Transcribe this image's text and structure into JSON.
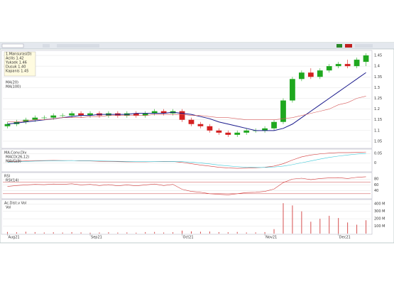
{
  "chart_data": [
    {
      "type": "candlestick",
      "title": "1.Mansuras(D)",
      "annotations": [
        "Acilis 1.42",
        "Yuksek 1.46",
        "Dusuk 1.40",
        "Kapanis 1.45"
      ],
      "open": [
        1.12,
        1.13,
        1.14,
        1.15,
        1.16,
        1.16,
        1.17,
        1.17,
        1.18,
        1.17,
        1.18,
        1.17,
        1.18,
        1.17,
        1.18,
        1.17,
        1.18,
        1.19,
        1.18,
        1.19,
        1.15,
        1.13,
        1.12,
        1.1,
        1.09,
        1.08,
        1.09,
        1.1,
        1.1,
        1.11,
        1.14,
        1.24,
        1.34,
        1.37,
        1.35,
        1.38,
        1.4,
        1.41,
        1.4,
        1.42
      ],
      "high": [
        1.14,
        1.15,
        1.16,
        1.17,
        1.17,
        1.18,
        1.18,
        1.19,
        1.19,
        1.19,
        1.19,
        1.19,
        1.19,
        1.19,
        1.19,
        1.19,
        1.2,
        1.2,
        1.2,
        1.2,
        1.16,
        1.14,
        1.13,
        1.11,
        1.1,
        1.1,
        1.11,
        1.11,
        1.12,
        1.15,
        1.25,
        1.35,
        1.38,
        1.39,
        1.39,
        1.41,
        1.42,
        1.43,
        1.44,
        1.46
      ],
      "low": [
        1.11,
        1.12,
        1.13,
        1.14,
        1.15,
        1.15,
        1.16,
        1.16,
        1.16,
        1.16,
        1.16,
        1.16,
        1.16,
        1.16,
        1.16,
        1.16,
        1.17,
        1.17,
        1.17,
        1.14,
        1.12,
        1.11,
        1.09,
        1.08,
        1.07,
        1.07,
        1.08,
        1.09,
        1.09,
        1.1,
        1.13,
        1.23,
        1.33,
        1.34,
        1.34,
        1.37,
        1.39,
        1.39,
        1.39,
        1.4
      ],
      "close": [
        1.13,
        1.14,
        1.15,
        1.16,
        1.16,
        1.17,
        1.17,
        1.18,
        1.17,
        1.18,
        1.17,
        1.18,
        1.17,
        1.18,
        1.17,
        1.18,
        1.19,
        1.18,
        1.19,
        1.15,
        1.13,
        1.12,
        1.1,
        1.09,
        1.08,
        1.09,
        1.1,
        1.1,
        1.11,
        1.14,
        1.24,
        1.34,
        1.37,
        1.35,
        1.38,
        1.4,
        1.41,
        1.4,
        1.43,
        1.45
      ],
      "up_color": "#1fa81f",
      "down_color": "#d42020",
      "series": [
        {
          "name": "MA(20)",
          "color": "#1a1a8c",
          "values": [
            1.13,
            1.135,
            1.14,
            1.145,
            1.15,
            1.155,
            1.16,
            1.165,
            1.17,
            1.17,
            1.175,
            1.175,
            1.175,
            1.175,
            1.18,
            1.18,
            1.18,
            1.18,
            1.185,
            1.18,
            1.175,
            1.165,
            1.155,
            1.14,
            1.13,
            1.12,
            1.11,
            1.1,
            1.1,
            1.1,
            1.11,
            1.13,
            1.16,
            1.19,
            1.22,
            1.25,
            1.28,
            1.31,
            1.34,
            1.37
          ]
        },
        {
          "name": "MA(100)",
          "color": "#d65a5a",
          "values": [
            1.14,
            1.14,
            1.145,
            1.15,
            1.15,
            1.155,
            1.16,
            1.16,
            1.16,
            1.165,
            1.165,
            1.17,
            1.17,
            1.17,
            1.17,
            1.17,
            1.175,
            1.175,
            1.175,
            1.175,
            1.17,
            1.17,
            1.165,
            1.16,
            1.16,
            1.155,
            1.15,
            1.15,
            1.15,
            1.15,
            1.155,
            1.16,
            1.17,
            1.18,
            1.19,
            1.2,
            1.22,
            1.23,
            1.25,
            1.26
          ]
        }
      ],
      "ylim": [
        1.02,
        1.47
      ],
      "yticks": [
        1.05,
        1.1,
        1.15,
        1.2,
        1.25,
        1.3,
        1.35,
        1.4,
        1.45
      ]
    },
    {
      "type": "line",
      "title": "MA.Conv.Div",
      "series": [
        {
          "name": "MACD(26,12)",
          "color": "#d23a3a",
          "values": [
            0.005,
            0.008,
            0.01,
            0.012,
            0.012,
            0.013,
            0.012,
            0.012,
            0.01,
            0.01,
            0.008,
            0.007,
            0.006,
            0.005,
            0.005,
            0.005,
            0.006,
            0.007,
            0.007,
            0.002,
            -0.005,
            -0.012,
            -0.018,
            -0.024,
            -0.028,
            -0.03,
            -0.029,
            -0.027,
            -0.024,
            -0.018,
            -0.005,
            0.015,
            0.032,
            0.042,
            0.048,
            0.052,
            0.055,
            0.055,
            0.056,
            0.058
          ]
        },
        {
          "name": "MAVG(9)",
          "color": "#3cc8d8",
          "values": [
            0.003,
            0.005,
            0.007,
            0.009,
            0.01,
            0.011,
            0.011,
            0.012,
            0.011,
            0.011,
            0.01,
            0.009,
            0.008,
            0.007,
            0.006,
            0.006,
            0.006,
            0.006,
            0.007,
            0.006,
            0.003,
            -0.001,
            -0.006,
            -0.012,
            -0.017,
            -0.021,
            -0.024,
            -0.025,
            -0.025,
            -0.023,
            -0.018,
            -0.01,
            0.0,
            0.01,
            0.02,
            0.029,
            0.036,
            0.042,
            0.047,
            0.05
          ]
        }
      ],
      "ylim": [
        -0.045,
        0.07
      ],
      "yticks": [
        0,
        0.05
      ]
    },
    {
      "type": "line",
      "title": "RSI",
      "series": [
        {
          "name": "RSI(14)",
          "color": "#d23a3a",
          "values": [
            55,
            58,
            60,
            62,
            61,
            63,
            62,
            64,
            60,
            62,
            58,
            61,
            57,
            60,
            57,
            60,
            63,
            58,
            62,
            45,
            38,
            35,
            30,
            28,
            26,
            30,
            34,
            35,
            38,
            46,
            68,
            80,
            83,
            78,
            82,
            84,
            85,
            82,
            86,
            88
          ]
        }
      ],
      "ylim": [
        15,
        100
      ],
      "yticks": [
        40,
        60,
        80
      ],
      "bands": [
        30,
        70
      ]
    },
    {
      "type": "bar",
      "title": "Ac.Dist.v Vol",
      "categories": [
        "Aug21",
        null,
        null,
        null,
        null,
        null,
        null,
        null,
        null,
        "Sep21",
        null,
        null,
        null,
        null,
        null,
        null,
        null,
        null,
        null,
        "Oct21",
        null,
        null,
        null,
        null,
        null,
        null,
        null,
        null,
        "Nov21",
        null,
        null,
        null,
        null,
        null,
        null,
        null,
        "Dec21",
        null,
        null,
        null
      ],
      "series": [
        {
          "name": "Vol",
          "color": "#d65050",
          "values": [
            22,
            18,
            25,
            20,
            15,
            18,
            14,
            20,
            16,
            12,
            15,
            18,
            14,
            16,
            12,
            20,
            22,
            15,
            18,
            40,
            30,
            25,
            28,
            20,
            18,
            22,
            15,
            16,
            20,
            60,
            410,
            380,
            300,
            160,
            200,
            240,
            210,
            150,
            120,
            180
          ]
        }
      ],
      "ylim": [
        0,
        450
      ],
      "yticks": [
        {
          "value": 100,
          "label": "100 M"
        },
        {
          "value": 200,
          "label": "200 M"
        },
        {
          "value": 300,
          "label": "300 M"
        },
        {
          "value": 400,
          "label": "400 M"
        }
      ]
    }
  ]
}
